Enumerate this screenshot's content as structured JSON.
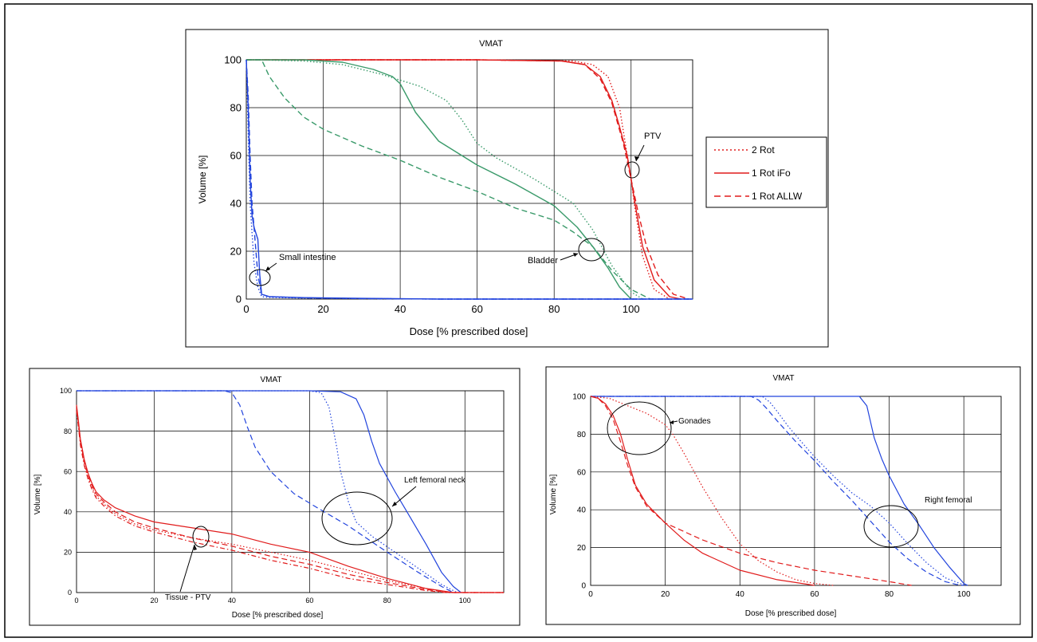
{
  "colors": {
    "red": "#e11c1c",
    "green": "#3a9a6a",
    "blue": "#2244dd",
    "grid": "#000000",
    "frame": "#000000"
  },
  "legend_labels": [
    "2 Rot",
    "1 Rot iFo",
    "1 Rot ALLW"
  ],
  "chart_data": [
    {
      "type": "line",
      "title": "VMAT",
      "xlabel": "Dose [% prescribed dose]",
      "ylabel": "Volume [%]",
      "xlim": [
        0,
        116
      ],
      "ylim": [
        0,
        100
      ],
      "xticks": [
        "0",
        "20",
        "40",
        "60",
        "80",
        "100"
      ],
      "yticks": [
        "0",
        "20",
        "40",
        "60",
        "80",
        "100"
      ],
      "grid": true,
      "legend": "right",
      "annotations": [
        "PTV",
        "Bladder",
        "Small intestine"
      ],
      "series": [
        {
          "name": "2 Rot",
          "color": "red",
          "dash": "dotted",
          "x": [
            0,
            60,
            85,
            90,
            94,
            97,
            99,
            100,
            101,
            103,
            106,
            110
          ],
          "y": [
            100,
            100,
            99.5,
            98,
            93,
            80,
            60,
            50,
            38,
            18,
            4,
            0
          ]
        },
        {
          "name": "1 Rot iFo",
          "color": "red",
          "dash": "solid",
          "x": [
            0,
            60,
            82,
            88,
            92,
            95,
            97,
            99,
            100,
            101,
            103,
            106,
            110,
            113
          ],
          "y": [
            100,
            100,
            99.5,
            98,
            93,
            83,
            72,
            60,
            50,
            40,
            22,
            8,
            1,
            0
          ]
        },
        {
          "name": "1 Rot ALLW",
          "color": "red",
          "dash": "dashed",
          "x": [
            0,
            60,
            82,
            88,
            92,
            95,
            98,
            100,
            102,
            104,
            107,
            111,
            115
          ],
          "y": [
            100,
            100,
            99.5,
            98,
            92,
            82,
            65,
            50,
            35,
            22,
            10,
            2,
            0
          ]
        },
        {
          "color": "green",
          "dash": "solid",
          "x": [
            0,
            3,
            15,
            25,
            33,
            38,
            40,
            44,
            50,
            60,
            70,
            80,
            86,
            90,
            94,
            97,
            100
          ],
          "y": [
            100,
            100,
            100,
            99,
            96,
            93,
            90,
            78,
            66,
            56,
            48,
            39,
            30,
            22,
            13,
            5,
            0
          ]
        },
        {
          "color": "green",
          "dash": "dotted",
          "x": [
            0,
            3,
            15,
            25,
            35,
            45,
            52,
            56,
            60,
            65,
            75,
            85,
            90,
            95,
            100,
            103
          ],
          "y": [
            100,
            100,
            99.5,
            98,
            94,
            89,
            83,
            75,
            65,
            59,
            50,
            40,
            29,
            14,
            3,
            0
          ]
        },
        {
          "color": "green",
          "dash": "dashed",
          "x": [
            0,
            2,
            4,
            6,
            10,
            15,
            20,
            30,
            40,
            50,
            60,
            70,
            80,
            85,
            90,
            95,
            100,
            105
          ],
          "y": [
            100,
            100,
            100,
            93,
            84,
            76,
            71,
            64,
            58,
            51,
            45,
            38,
            33,
            28,
            22,
            12,
            4,
            0
          ]
        },
        {
          "color": "blue",
          "dash": "solid",
          "x": [
            0,
            0.5,
            1,
            1.5,
            2,
            3,
            3.5,
            4,
            6,
            15,
            30,
            50,
            80,
            116
          ],
          "y": [
            100,
            80,
            50,
            35,
            30,
            25,
            10,
            2,
            1,
            0.6,
            0.3,
            0,
            0,
            0
          ]
        },
        {
          "color": "blue",
          "dash": "dashed",
          "x": [
            0,
            0.5,
            1,
            1.5,
            2,
            2.5,
            3,
            4,
            6,
            15,
            30,
            50,
            116
          ],
          "y": [
            100,
            85,
            60,
            40,
            30,
            20,
            10,
            2,
            1,
            0.5,
            0.2,
            0,
            0
          ]
        },
        {
          "color": "blue",
          "dash": "dotted",
          "x": [
            0,
            0.5,
            1,
            2,
            3,
            4,
            6,
            15,
            30,
            50,
            116
          ],
          "y": [
            100,
            70,
            40,
            15,
            5,
            1,
            0.7,
            0.4,
            0.2,
            0,
            0
          ]
        }
      ]
    },
    {
      "type": "line",
      "title": "VMAT",
      "xlabel": "Dose [% prescribed dose]",
      "ylabel": "Volume [%]",
      "xlim": [
        0,
        110
      ],
      "ylim": [
        0,
        100
      ],
      "xticks": [
        "0",
        "20",
        "40",
        "60",
        "80",
        "100"
      ],
      "yticks": [
        "0",
        "20",
        "40",
        "60",
        "80",
        "100"
      ],
      "grid": true,
      "annotations": [
        "Left femoral neck",
        "Tissue - PTV"
      ],
      "series": [
        {
          "color": "blue",
          "dash": "solid",
          "x": [
            0,
            60,
            68,
            72,
            74,
            76,
            78,
            82,
            86,
            90,
            94,
            97,
            99
          ],
          "y": [
            100,
            100,
            99.5,
            96,
            88,
            75,
            64,
            50,
            37,
            24,
            10,
            3,
            0
          ]
        },
        {
          "color": "blue",
          "dash": "dashed",
          "x": [
            0,
            38,
            40,
            42,
            44,
            46,
            50,
            56,
            62,
            70,
            80,
            88,
            94,
            97
          ],
          "y": [
            100,
            100,
            99,
            93,
            82,
            72,
            60,
            49,
            42,
            33,
            20,
            10,
            3,
            0
          ]
        },
        {
          "color": "blue",
          "dash": "dotted",
          "x": [
            0,
            60,
            63,
            65,
            66,
            67,
            68,
            70,
            72,
            76,
            82,
            88,
            94,
            98
          ],
          "y": [
            100,
            100,
            99,
            92,
            82,
            72,
            60,
            45,
            35,
            28,
            20,
            12,
            4,
            0
          ]
        },
        {
          "color": "red",
          "dash": "solid",
          "x": [
            0,
            0.5,
            1,
            2,
            3,
            4,
            5,
            7,
            10,
            15,
            20,
            30,
            40,
            50,
            60,
            70,
            80,
            90,
            97,
            100,
            110
          ],
          "y": [
            93,
            85,
            76,
            66,
            59,
            54,
            50,
            46,
            42,
            38,
            35,
            32,
            29,
            24,
            20,
            13,
            7,
            2,
            0,
            0,
            0
          ]
        },
        {
          "color": "red",
          "dash": "dashed",
          "x": [
            0,
            0.5,
            1,
            2,
            3,
            4,
            5,
            7,
            10,
            15,
            20,
            30,
            40,
            50,
            60,
            70,
            80,
            90,
            96,
            110
          ],
          "y": [
            92,
            84,
            75,
            65,
            58,
            53,
            49,
            45,
            40,
            35,
            32,
            27,
            23,
            18,
            14,
            9,
            5,
            1.5,
            0,
            0
          ]
        },
        {
          "color": "red",
          "dash": "dotted",
          "x": [
            0,
            0.5,
            1,
            2,
            3,
            4,
            5,
            7,
            10,
            15,
            20,
            30,
            40,
            50,
            60,
            70,
            80,
            90,
            96,
            110
          ],
          "y": [
            91,
            83,
            74,
            64,
            57,
            52,
            48,
            44,
            39,
            34,
            31,
            27,
            24,
            20,
            16,
            11,
            6,
            2,
            0,
            0
          ]
        },
        {
          "color": "red",
          "dash": "dashdot",
          "x": [
            0,
            0.5,
            1,
            2,
            3,
            4,
            5,
            7,
            10,
            15,
            20,
            30,
            40,
            50,
            60,
            70,
            80,
            90,
            95,
            110
          ],
          "y": [
            90,
            82,
            73,
            63,
            56,
            51,
            47,
            43,
            38,
            33,
            30,
            25,
            21,
            16,
            12,
            7,
            4,
            1,
            0,
            0
          ]
        }
      ]
    },
    {
      "type": "line",
      "title": "VMAT",
      "xlabel": "Dose [% prescribed dose]",
      "ylabel": "Volume [%]",
      "xlim": [
        0,
        110
      ],
      "ylim": [
        0,
        100
      ],
      "xticks": [
        "0",
        "20",
        "40",
        "60",
        "80",
        "100"
      ],
      "yticks": [
        "0",
        "20",
        "40",
        "60",
        "80",
        "100"
      ],
      "grid": true,
      "annotations": [
        "Gonades",
        "Right femoral"
      ],
      "series": [
        {
          "color": "blue",
          "dash": "solid",
          "x": [
            0,
            72,
            74,
            76,
            78,
            80,
            84,
            88,
            92,
            96,
            100,
            101
          ],
          "y": [
            100,
            100,
            95,
            78,
            67,
            58,
            43,
            32,
            20,
            10,
            1,
            0
          ]
        },
        {
          "color": "blue",
          "dash": "dashed",
          "x": [
            0,
            43,
            45,
            47,
            50,
            55,
            60,
            65,
            70,
            75,
            80,
            85,
            90,
            95,
            98,
            100
          ],
          "y": [
            100,
            100,
            98,
            94,
            87,
            76,
            66,
            55,
            45,
            34,
            23,
            14,
            7,
            2,
            0.5,
            0
          ]
        },
        {
          "color": "blue",
          "dash": "dotted",
          "x": [
            0,
            46,
            48,
            50,
            53,
            56,
            60,
            65,
            70,
            75,
            80,
            85,
            90,
            95,
            99,
            101
          ],
          "y": [
            100,
            100,
            97,
            92,
            84,
            77,
            68,
            58,
            49,
            42,
            33,
            22,
            12,
            4,
            1,
            0
          ]
        },
        {
          "color": "red",
          "dash": "solid",
          "x": [
            0,
            2,
            4,
            6,
            8,
            10,
            12,
            15,
            20,
            25,
            30,
            40,
            50,
            60
          ],
          "y": [
            100,
            99,
            96,
            90,
            80,
            66,
            53,
            43,
            33,
            24,
            17,
            8,
            3,
            0
          ]
        },
        {
          "color": "red",
          "dash": "dashed",
          "x": [
            0,
            2,
            4,
            6,
            8,
            10,
            12,
            15,
            20,
            30,
            40,
            50,
            60,
            70,
            80,
            86
          ],
          "y": [
            100,
            99,
            95,
            88,
            76,
            63,
            52,
            42,
            33,
            24,
            17,
            12,
            8,
            5,
            2,
            0
          ]
        },
        {
          "color": "red",
          "dash": "dotted",
          "x": [
            0,
            5,
            10,
            15,
            20,
            22,
            25,
            30,
            35,
            40,
            45,
            50,
            55,
            60,
            65
          ],
          "y": [
            100,
            99,
            95,
            91,
            85,
            80,
            70,
            52,
            36,
            22,
            13,
            7,
            3,
            1,
            0
          ]
        }
      ]
    }
  ]
}
